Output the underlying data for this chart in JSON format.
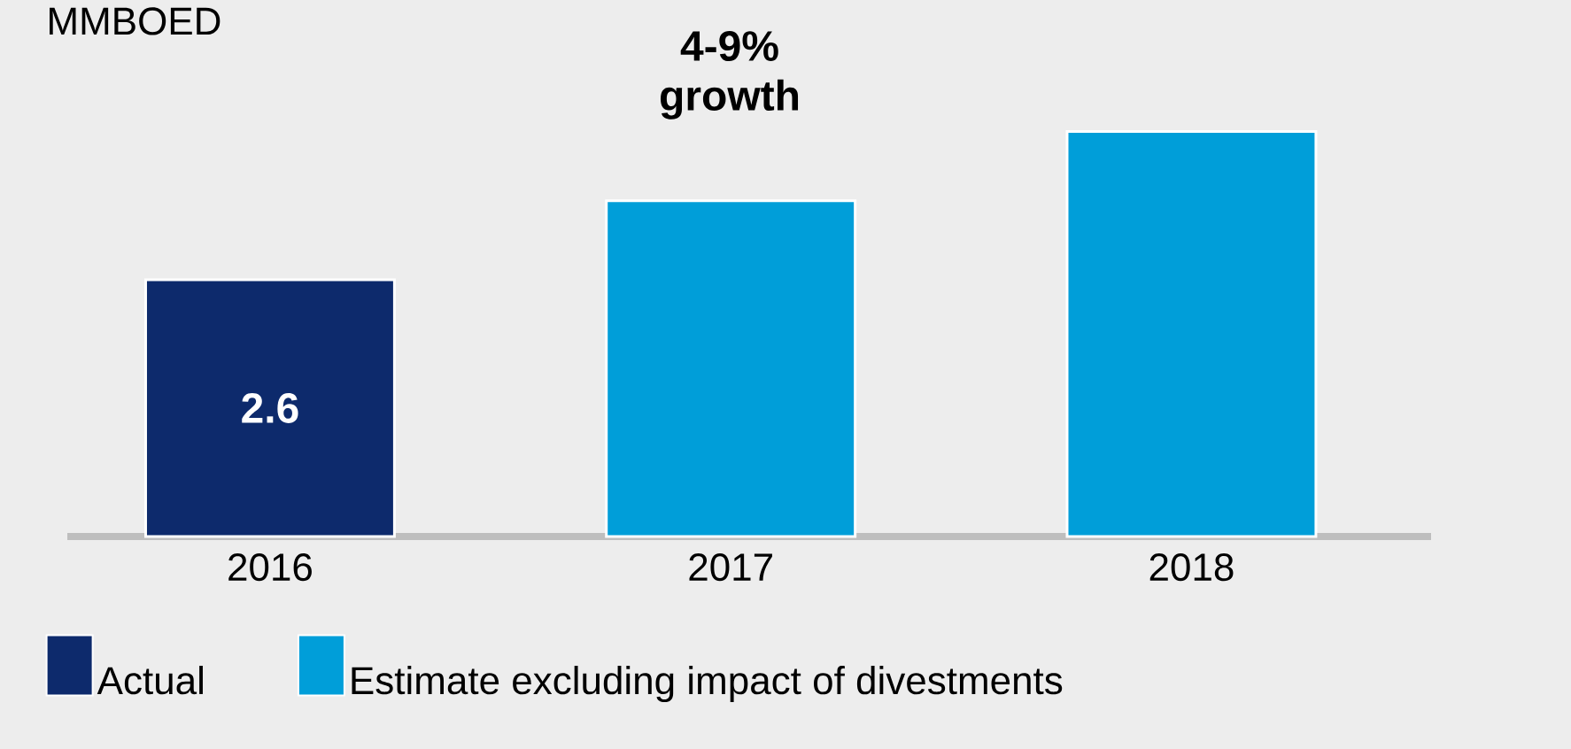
{
  "chart_data": {
    "type": "bar",
    "categories": [
      "2016",
      "2017",
      "2018"
    ],
    "series": [
      {
        "name": "Actual",
        "color": "#0d2a6c",
        "values": [
          2.6,
          null,
          null
        ],
        "value_labels": [
          "2.6",
          null,
          null
        ]
      },
      {
        "name": "Estimate excluding impact of divestments",
        "color": "#009ed9",
        "values": [
          null,
          3.4,
          4.1
        ]
      }
    ],
    "annotations": [
      "MMBOED",
      "4-9% growth"
    ],
    "legend": "bottom"
  }
}
